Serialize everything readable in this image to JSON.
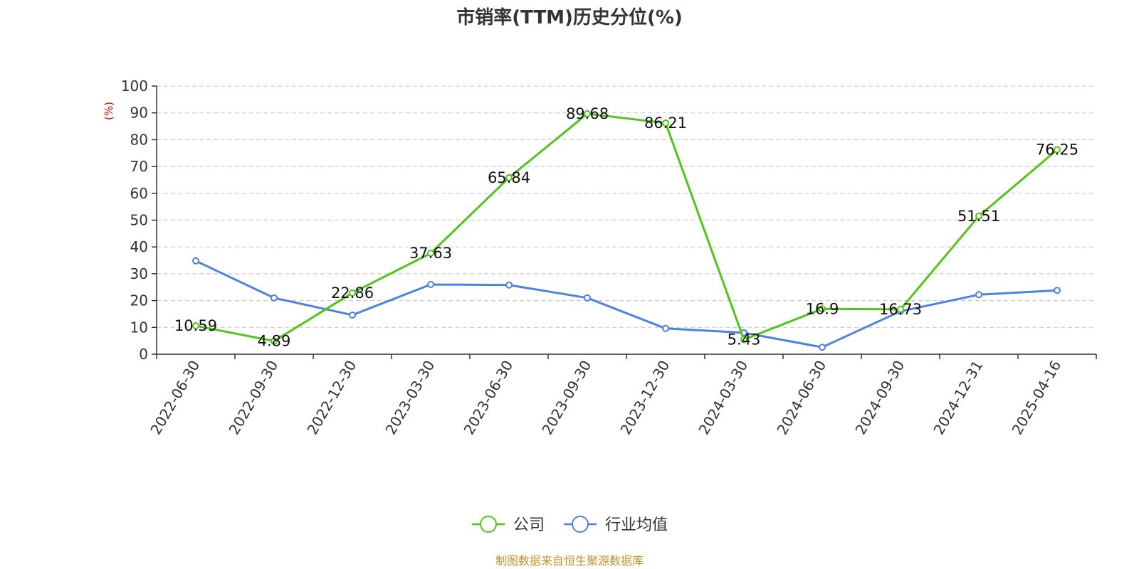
{
  "chart_data": {
    "type": "line",
    "title": "市销率(TTM)历史分位(%)",
    "ylabel": "(%)",
    "xlabel": "",
    "categories": [
      "2022-06-30",
      "2022-09-30",
      "2022-12-30",
      "2023-03-30",
      "2023-06-30",
      "2023-09-30",
      "2023-12-30",
      "2024-03-30",
      "2024-06-30",
      "2024-09-30",
      "2024-12-31",
      "2025-04-16"
    ],
    "ylim": [
      0,
      100
    ],
    "yticks": [
      0,
      10,
      20,
      30,
      40,
      50,
      60,
      70,
      80,
      90,
      100
    ],
    "grid": true,
    "legend_position": "bottom-center",
    "series": [
      {
        "name": "公司",
        "color": "#52c41a",
        "values": [
          10.59,
          4.89,
          22.86,
          37.63,
          65.84,
          89.68,
          86.21,
          5.43,
          16.9,
          16.73,
          51.51,
          76.25
        ],
        "labels": [
          "10.59",
          "4.89",
          "22.86",
          "37.63",
          "65.84",
          "89.68",
          "86.21",
          "5.43",
          "16.9",
          "16.73",
          "51.51",
          "76.25"
        ]
      },
      {
        "name": "行业均值",
        "color": "#4f81e0",
        "values": [
          34.8,
          21.0,
          14.6,
          26.0,
          25.8,
          21.0,
          9.6,
          8.0,
          2.6,
          16.0,
          22.2,
          23.8
        ]
      }
    ],
    "source": "制图数据来自恒生聚源数据库"
  }
}
